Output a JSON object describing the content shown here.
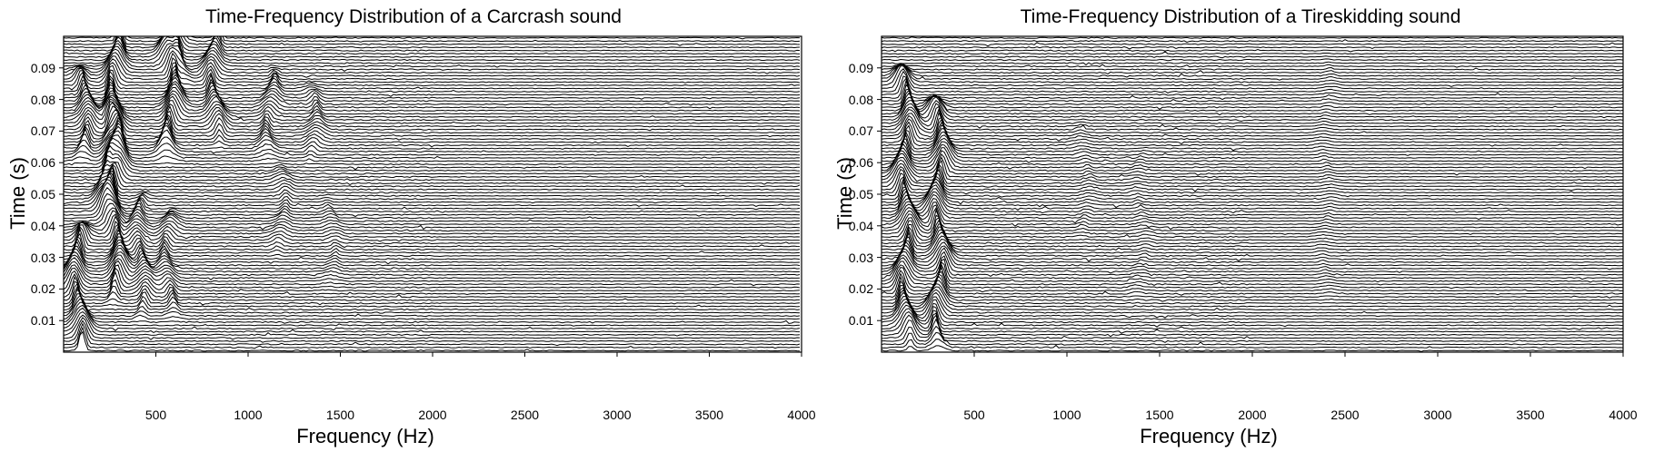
{
  "chart_data": [
    {
      "type": "waterfall-line",
      "title": "Time-Frequency Distribution of a Carcrash sound",
      "xlabel": "Frequency (Hz)",
      "ylabel": "Time (s)",
      "xlim": [
        0,
        4000
      ],
      "ylim": [
        0,
        0.1
      ],
      "x_ticks": [
        "500",
        "1000",
        "1500",
        "2000",
        "2500",
        "3000",
        "3500",
        "4000"
      ],
      "y_ticks": [
        "0.01",
        "0.02",
        "0.03",
        "0.04",
        "0.05",
        "0.06",
        "0.07",
        "0.08",
        "0.09"
      ],
      "x_tick_values": [
        500,
        1000,
        1500,
        2000,
        2500,
        3000,
        3500,
        4000
      ],
      "y_tick_values": [
        0.01,
        0.02,
        0.03,
        0.04,
        0.05,
        0.06,
        0.07,
        0.08,
        0.09
      ],
      "num_traces": 100,
      "grid": false,
      "line_color": "#000000",
      "peaks": [
        {
          "freq_hz": 80,
          "time_start_s": 0.0,
          "time_end_s": 0.035,
          "amplitude": 1.0
        },
        {
          "freq_hz": 280,
          "time_start_s": 0.02,
          "time_end_s": 0.1,
          "amplitude": 1.0
        },
        {
          "freq_hz": 240,
          "time_start_s": 0.045,
          "time_end_s": 0.07,
          "amplitude": 0.8
        },
        {
          "freq_hz": 110,
          "time_start_s": 0.065,
          "time_end_s": 0.085,
          "amplitude": 0.8
        },
        {
          "freq_hz": 420,
          "time_start_s": 0.015,
          "time_end_s": 0.045,
          "amplitude": 0.6
        },
        {
          "freq_hz": 580,
          "time_start_s": 0.065,
          "time_end_s": 0.095,
          "amplitude": 1.0
        },
        {
          "freq_hz": 570,
          "time_start_s": 0.015,
          "time_end_s": 0.04,
          "amplitude": 0.5
        },
        {
          "freq_hz": 640,
          "time_start_s": 0.09,
          "time_end_s": 0.1,
          "amplitude": 0.7
        },
        {
          "freq_hz": 820,
          "time_start_s": 0.07,
          "time_end_s": 0.1,
          "amplitude": 0.8
        },
        {
          "freq_hz": 1120,
          "time_start_s": 0.065,
          "time_end_s": 0.085,
          "amplitude": 0.5
        },
        {
          "freq_hz": 1350,
          "time_start_s": 0.065,
          "time_end_s": 0.08,
          "amplitude": 0.4
        },
        {
          "freq_hz": 1180,
          "time_start_s": 0.035,
          "time_end_s": 0.055,
          "amplitude": 0.3
        },
        {
          "freq_hz": 1450,
          "time_start_s": 0.025,
          "time_end_s": 0.045,
          "amplitude": 0.2
        }
      ]
    },
    {
      "type": "waterfall-line",
      "title": "Time-Frequency Distribution of a Tireskidding sound",
      "xlabel": "Frequency (Hz)",
      "ylabel": "Time (s)",
      "xlim": [
        0,
        4000
      ],
      "ylim": [
        0,
        0.1
      ],
      "x_ticks": [
        "500",
        "1000",
        "1500",
        "2000",
        "2500",
        "3000",
        "3500",
        "4000"
      ],
      "y_ticks": [
        "0.01",
        "0.02",
        "0.03",
        "0.04",
        "0.05",
        "0.06",
        "0.07",
        "0.08",
        "0.09"
      ],
      "x_tick_values": [
        500,
        1000,
        1500,
        2000,
        2500,
        3000,
        3500,
        4000
      ],
      "y_tick_values": [
        0.01,
        0.02,
        0.03,
        0.04,
        0.05,
        0.06,
        0.07,
        0.08,
        0.09
      ],
      "num_traces": 100,
      "grid": false,
      "line_color": "#000000",
      "peaks": [
        {
          "freq_hz": 130,
          "time_start_s": 0.005,
          "time_end_s": 0.085,
          "amplitude": 1.0
        },
        {
          "freq_hz": 310,
          "time_start_s": 0.005,
          "time_end_s": 0.075,
          "amplitude": 1.0
        },
        {
          "freq_hz": 1100,
          "time_start_s": 0.04,
          "time_end_s": 0.07,
          "amplitude": 0.15
        },
        {
          "freq_hz": 1400,
          "time_start_s": 0.02,
          "time_end_s": 0.06,
          "amplitude": 0.12
        },
        {
          "freq_hz": 2400,
          "time_start_s": 0.02,
          "time_end_s": 0.09,
          "amplitude": 0.1
        }
      ]
    }
  ]
}
